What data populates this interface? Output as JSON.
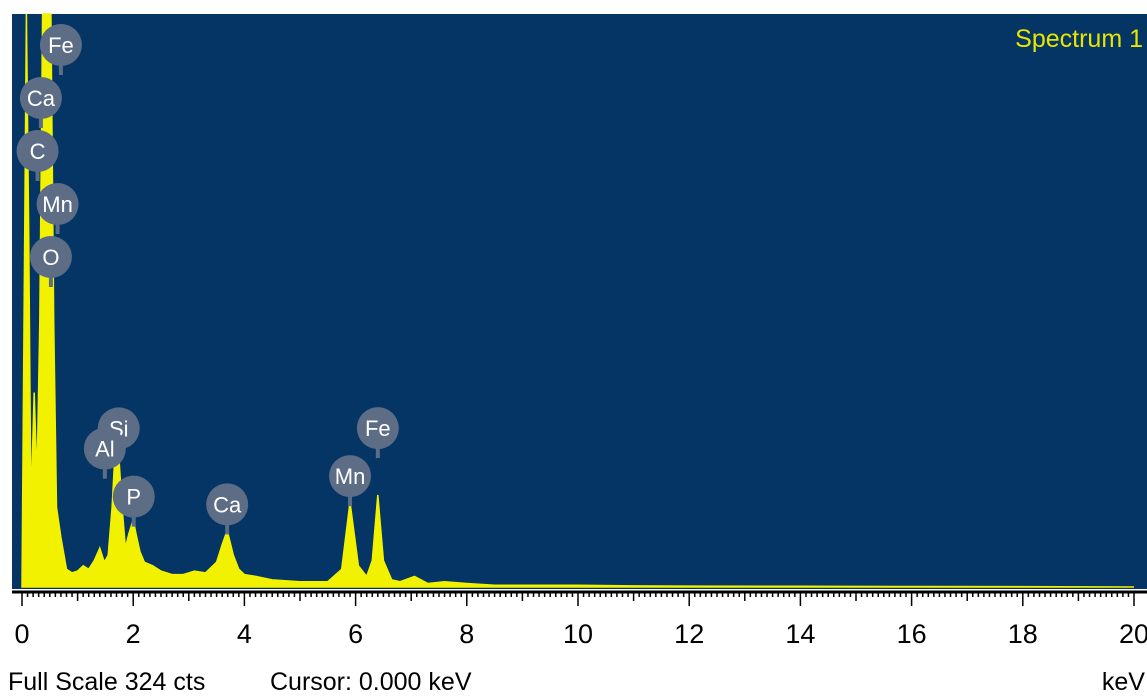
{
  "title": "Spectrum 1",
  "status": {
    "full_scale": "Full Scale 324 cts",
    "cursor": "Cursor: 0.000 keV",
    "unit": "keV"
  },
  "colors": {
    "plot_background": "#053565",
    "spectrum": "#f2f200",
    "title": "#e6e600",
    "marker_fill": "#5d6d86",
    "marker_text": "#ffffff",
    "axis": "#000000"
  },
  "chart_data": {
    "type": "area",
    "title": "Spectrum 1",
    "xlabel": "keV",
    "ylabel": "",
    "xlim": [
      0,
      20
    ],
    "ylim": [
      0,
      324
    ],
    "grid": false,
    "x_ticks": [
      "0",
      "2",
      "4",
      "6",
      "8",
      "10",
      "12",
      "14",
      "16",
      "18",
      "20"
    ],
    "series": [
      {
        "x": [
          0.0,
          0.08,
          0.12,
          0.16,
          0.22,
          0.27,
          0.32,
          0.37,
          0.42,
          0.47,
          0.52,
          0.57,
          0.62,
          0.7,
          0.8,
          0.9,
          1.0,
          1.1,
          1.2,
          1.3,
          1.4,
          1.48,
          1.55,
          1.62,
          1.68,
          1.74,
          1.8,
          1.86,
          1.92,
          2.0,
          2.05,
          2.12,
          2.2,
          2.35,
          2.5,
          2.7,
          2.9,
          3.1,
          3.3,
          3.5,
          3.6,
          3.69,
          3.8,
          3.9,
          4.0,
          4.2,
          4.5,
          5.0,
          5.5,
          5.75,
          5.9,
          6.05,
          6.2,
          6.3,
          6.4,
          6.5,
          6.65,
          6.8,
          7.06,
          7.3,
          7.6,
          8.0,
          8.5,
          9.0,
          10.0,
          11.0,
          12.0,
          14.0,
          16.0,
          18.0,
          20.0
        ],
        "values": [
          0,
          324,
          200,
          45,
          110,
          60,
          150,
          324,
          324,
          324,
          324,
          150,
          45,
          28,
          10,
          8,
          9,
          12,
          10,
          15,
          22,
          14,
          18,
          45,
          80,
          75,
          45,
          22,
          30,
          38,
          30,
          20,
          14,
          12,
          9,
          7,
          7,
          9,
          8,
          14,
          24,
          32,
          18,
          10,
          7,
          6,
          4,
          3,
          3,
          10,
          48,
          12,
          6,
          15,
          52,
          15,
          4,
          3,
          6,
          2,
          3,
          2,
          1,
          1,
          1,
          0.6,
          0.5,
          0.4,
          0.3,
          0.2,
          0
        ]
      }
    ],
    "annotations": [
      {
        "label": "Fe",
        "x": 0.7
      },
      {
        "label": "Ca",
        "x": 0.34
      },
      {
        "label": "C",
        "x": 0.28
      },
      {
        "label": "Mn",
        "x": 0.64
      },
      {
        "label": "O",
        "x": 0.52
      },
      {
        "label": "Si",
        "x": 1.74
      },
      {
        "label": "P",
        "x": 2.01
      },
      {
        "label": "Al",
        "x": 1.49
      },
      {
        "label": "Ca",
        "x": 3.69
      },
      {
        "label": "Mn",
        "x": 5.9
      },
      {
        "label": "Fe",
        "x": 6.4
      }
    ]
  }
}
